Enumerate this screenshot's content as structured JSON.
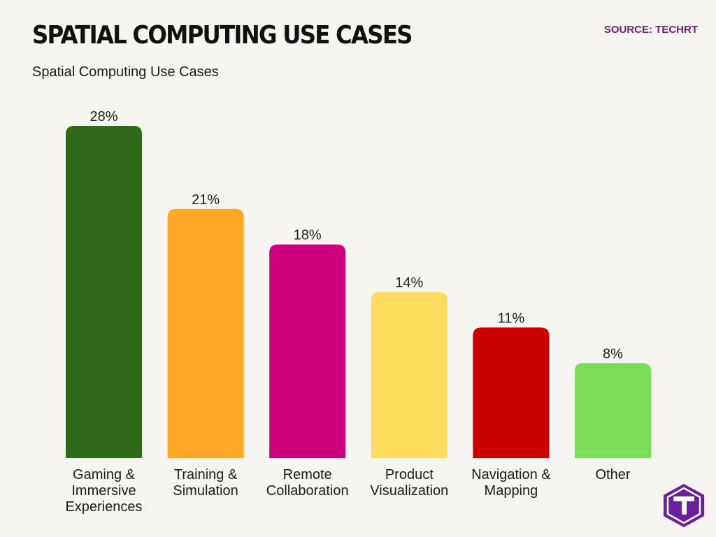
{
  "header": {
    "title": "SPATIAL COMPUTING USE CASES",
    "subtitle": "Spatial Computing Use Cases",
    "source": "SOURCE: TECHRT",
    "source_color": "#6b1f7a"
  },
  "logo": {
    "icon": "techrt-logo-icon",
    "color": "#6b1f9e"
  },
  "chart_data": {
    "type": "bar",
    "title": "Spatial Computing Use Cases",
    "categories": [
      "Gaming & Immersive Experiences",
      "Training & Simulation",
      "Remote Collaboration",
      "Product Visualization",
      "Navigation & Mapping",
      "Other"
    ],
    "category_lines": [
      [
        "Gaming &",
        "Immersive",
        "Experiences"
      ],
      [
        "Training &",
        "Simulation"
      ],
      [
        "Remote",
        "Collaboration"
      ],
      [
        "Product",
        "Visualization"
      ],
      [
        "Navigation &",
        "Mapping"
      ],
      [
        "Other"
      ]
    ],
    "values": [
      28,
      21,
      18,
      14,
      11,
      8
    ],
    "value_labels": [
      "28%",
      "21%",
      "18%",
      "14%",
      "11%",
      "8%"
    ],
    "colors": [
      "#2f6a1a",
      "#ffa726",
      "#cc007a",
      "#ffdc5e",
      "#cc0000",
      "#7ddb5a"
    ],
    "ylim": [
      0,
      28
    ],
    "xlabel": "",
    "ylabel": "",
    "grid": false,
    "legend": "none"
  }
}
